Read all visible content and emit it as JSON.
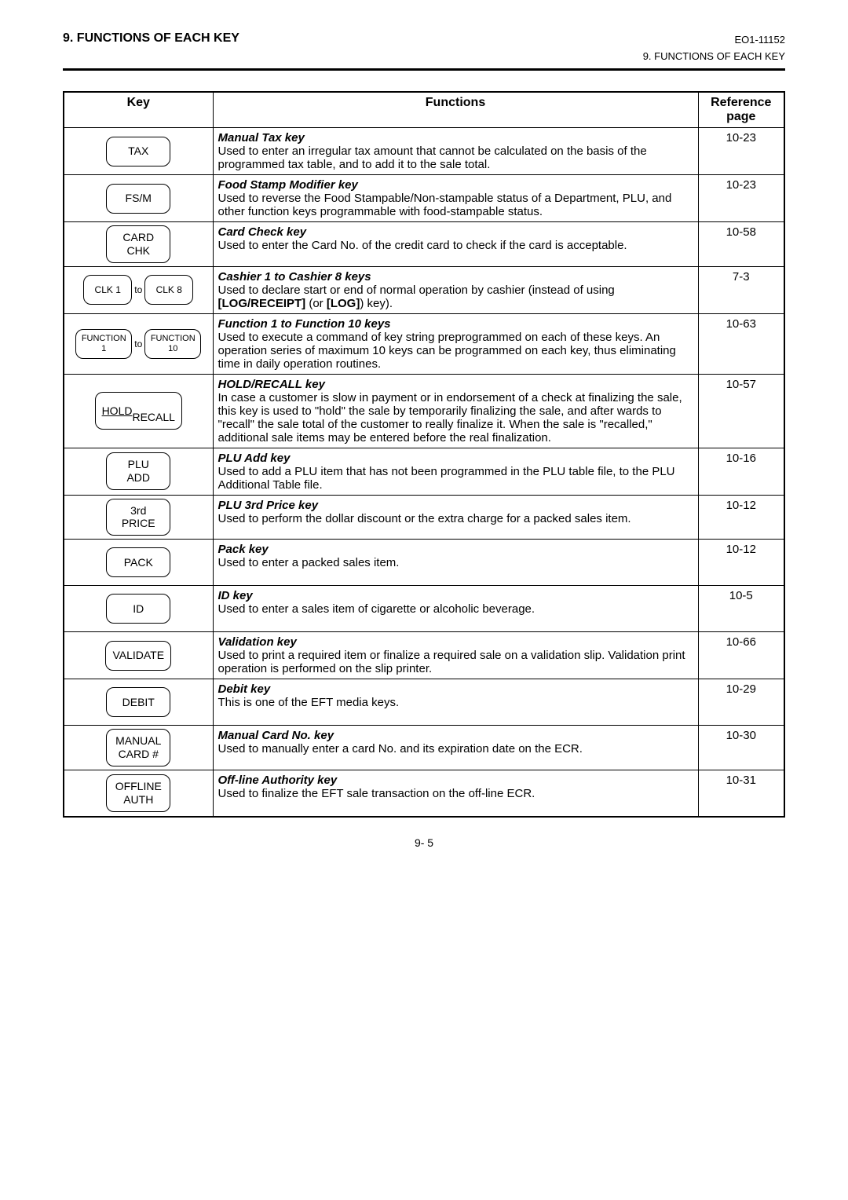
{
  "header": {
    "left": "9. FUNCTIONS OF EACH KEY",
    "right": "EO1-11152",
    "sub": "9. FUNCTIONS OF EACH KEY"
  },
  "table": {
    "headers": {
      "key": "Key",
      "functions": "Functions",
      "ref_line1": "Reference",
      "ref_line2": "page"
    }
  },
  "to_label": "to",
  "rows": [
    {
      "key_type": "single",
      "key_label": "TAX",
      "title": "Manual Tax key",
      "desc": "Used to enter an irregular tax amount that cannot be calculated on the basis of the programmed tax table, and to add it to the sale total.",
      "ref": "10-23"
    },
    {
      "key_type": "single",
      "key_label": "FS/M",
      "title": "Food Stamp Modifier key",
      "desc": "Used to reverse the Food Stampable/Non-stampable status of a Department, PLU, and other function keys programmable with food-stampable status.",
      "ref": "10-23"
    },
    {
      "key_type": "single_two_line",
      "key_line1": "CARD",
      "key_line2": "CHK",
      "title": "Card Check key",
      "desc": "Used to enter the Card No. of the credit card to check if the card is acceptable.",
      "ref": "10-58"
    },
    {
      "key_type": "range",
      "key_label_a": "CLK 1",
      "key_label_b": "CLK 8",
      "title": "Cashier 1 to Cashier 8 keys",
      "desc_prefix": "Used to declare start or end of normal operation by cashier (instead of using ",
      "desc_bold1": "[LOG/RECEIPT]",
      "desc_mid": " (or ",
      "desc_bold2": "[LOG]",
      "desc_suffix": ") key).",
      "ref": "7-3"
    },
    {
      "key_type": "range_func",
      "key_a_line1": "FUNCTION",
      "key_a_line2": "1",
      "key_b_line1": "FUNCTION",
      "key_b_line2": "10",
      "title": "Function 1 to Function 10 keys",
      "desc": "Used to execute a command of key string preprogrammed on each of these keys.  An operation series of maximum 10 keys can be programmed on each key, thus eliminating time in daily operation routines.",
      "ref": "10-63"
    },
    {
      "key_type": "single_two_line_underline",
      "key_line1": "HOLD",
      "key_line2": "RECALL",
      "title": "HOLD/RECALL key",
      "desc": "In case a customer is slow in payment or in endorsement of a check at finalizing the sale, this key is used to \"hold\" the sale by temporarily finalizing the sale, and after wards to \"recall\" the sale total of the customer to really finalize it.  When the sale is \"recalled,\" additional sale items may be entered before the real finalization.",
      "ref": "10-57"
    },
    {
      "key_type": "single_two_line",
      "key_line1": "PLU",
      "key_line2": "ADD",
      "title": "PLU Add key",
      "desc": "Used to add a PLU item that has not been programmed in the PLU table file, to the PLU Additional Table file.",
      "ref": "10-16"
    },
    {
      "key_type": "single_two_line",
      "key_line1": "3rd",
      "key_line2": "PRICE",
      "title": "PLU 3rd Price key",
      "desc": "Used to perform the dollar discount or the extra charge for a packed sales item.",
      "ref": "10-12"
    },
    {
      "key_type": "single",
      "key_label": "PACK",
      "title": "Pack key",
      "desc": "Used to enter a packed sales item.",
      "ref": "10-12",
      "pad": true
    },
    {
      "key_type": "single",
      "key_label": "ID",
      "title": "ID key",
      "desc": "Used to enter a sales item of cigarette or alcoholic beverage.",
      "ref": "10-5",
      "pad": true
    },
    {
      "key_type": "single",
      "key_label": "VALIDATE",
      "title": "Validation key",
      "desc": "Used to print a required item or finalize a required sale on a validation slip.  Validation print operation is performed on the slip printer.",
      "ref": "10-66"
    },
    {
      "key_type": "single",
      "key_label": "DEBIT",
      "title": "Debit key",
      "desc": "This is one of the EFT media keys.",
      "ref": "10-29",
      "pad": true
    },
    {
      "key_type": "single_two_line",
      "key_line1": "MANUAL",
      "key_line2": "CARD #",
      "title": "Manual Card No. key",
      "desc": "Used to manually enter a card No. and its expiration date on the ECR.",
      "ref": "10-30"
    },
    {
      "key_type": "single_two_line",
      "key_line1": "OFFLINE",
      "key_line2": "AUTH",
      "title": "Off-line Authority key",
      "desc": "Used to finalize the EFT sale transaction on the off-line ECR.",
      "ref": "10-31",
      "pad": true
    }
  ],
  "footer": {
    "page": "9- 5"
  }
}
